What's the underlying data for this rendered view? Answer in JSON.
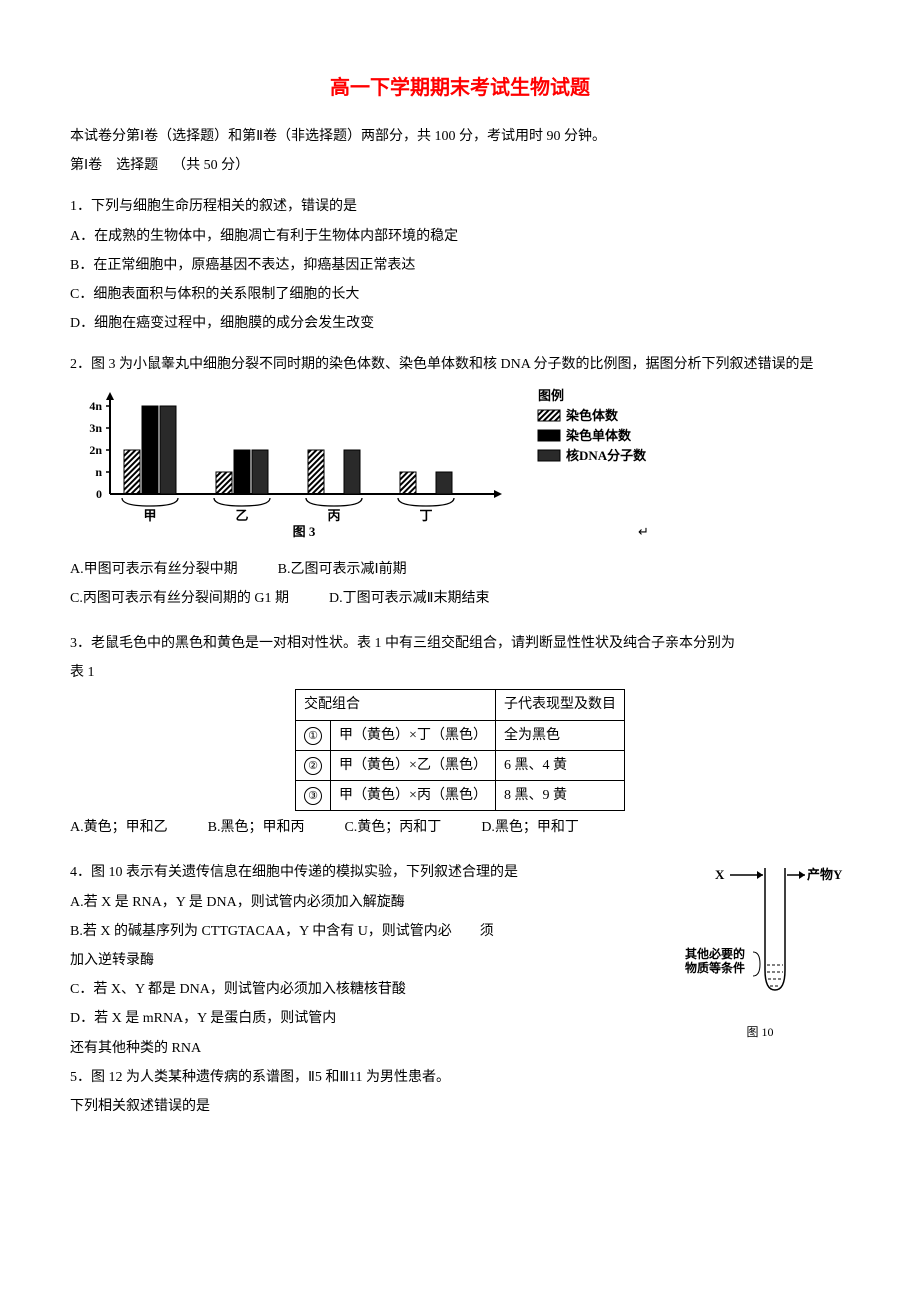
{
  "title": "高一下学期期末考试生物试题",
  "intro": "本试卷分第Ⅰ卷（选择题）和第Ⅱ卷（非选择题）两部分，共 100 分，考试用时 90 分钟。",
  "section_line": "第Ⅰ卷 选择题 （共 50 分）",
  "q1": {
    "stem": "1．下列与细胞生命历程相关的叙述，错误的是",
    "A": "A．在成熟的生物体中，细胞凋亡有利于生物体内部环境的稳定",
    "B": "B．在正常细胞中，原癌基因不表达，抑癌基因正常表达",
    "C": "C．细胞表面积与体积的关系限制了细胞的长大",
    "D": "D．细胞在癌变过程中，细胞膜的成分会发生改变"
  },
  "q2": {
    "stem": "2．图 3 为小鼠睾丸中细胞分裂不同时期的染色体数、染色单体数和核 DNA 分子数的比例图，据图分析下列叙述错误的是",
    "chart": {
      "type": "grouped-bar",
      "x_categories": [
        "甲",
        "乙",
        "丙",
        "丁"
      ],
      "y_ticks": [
        "n",
        "2n",
        "3n",
        "4n"
      ],
      "series": [
        {
          "name": "染色体数",
          "pattern": "hatch",
          "values": [
            2,
            1,
            2,
            1
          ]
        },
        {
          "name": "染色单体数",
          "pattern": "solid-black",
          "values": [
            4,
            2,
            0,
            0
          ]
        },
        {
          "name": "核DNA分子数",
          "pattern": "solid-dark",
          "values": [
            4,
            2,
            2,
            1
          ]
        }
      ],
      "axis_color": "#000",
      "bg": "#ffffff",
      "caption": "图 3",
      "caption_suffix": "↵",
      "legend_title": "图例",
      "legend": [
        "染色体数",
        "染色单体数",
        "核DNA分子数"
      ]
    },
    "A": "A.甲图可表示有丝分裂中期",
    "B": "B.乙图可表示减Ⅰ前期",
    "C": "C.丙图可表示有丝分裂间期的 G1 期",
    "D": "D.丁图可表示减Ⅱ末期结束"
  },
  "q3": {
    "stem": "3．老鼠毛色中的黑色和黄色是一对相对性状。表 1 中有三组交配组合，请判断显性性状及纯合子亲本分别为",
    "table_label": "表 1",
    "header": [
      "交配组合",
      "子代表现型及数目"
    ],
    "rows": [
      {
        "num": "①",
        "combo": "甲（黄色）×丁（黑色）",
        "off": "全为黑色"
      },
      {
        "num": "②",
        "combo": "甲（黄色）×乙（黑色）",
        "off": "6 黑、4 黄"
      },
      {
        "num": "③",
        "combo": "甲（黄色）×丙（黑色）",
        "off": "8 黑、9 黄"
      }
    ],
    "A": "A.黄色；甲和乙",
    "B": "B.黑色；甲和丙",
    "C": "C.黄色；丙和丁",
    "D": "D.黑色；甲和丁"
  },
  "q4": {
    "stem": "4．图 10 表示有关遗传信息在细胞中传递的模拟实验，下列叙述合理的是",
    "A": "A.若 X 是 RNA，Y 是 DNA，则试管内必须加入解旋酶",
    "B1": "B.若 X 的碱基序列为 CTTGTACAA，Y 中含有 U，则试管内必  须",
    "B2": "加入逆转录酶",
    "C": "C．若 X、Y 都是 DNA，则试管内必须加入核糖核苷酸",
    "D1": "D．若 X 是 mRNA，Y 是蛋白质，则试管内",
    "D2": "还有其他种类的 RNA",
    "fig": {
      "X": "X",
      "Y": "产物Y",
      "cond": "其他必要的\n物质等条件",
      "caption": "图 10"
    }
  },
  "q5": {
    "line1": "5．图 12 为人类某种遗传病的系谱图，Ⅱ5 和Ⅲ11 为男性患者。",
    "line2": "下列相关叙述错误的是"
  }
}
